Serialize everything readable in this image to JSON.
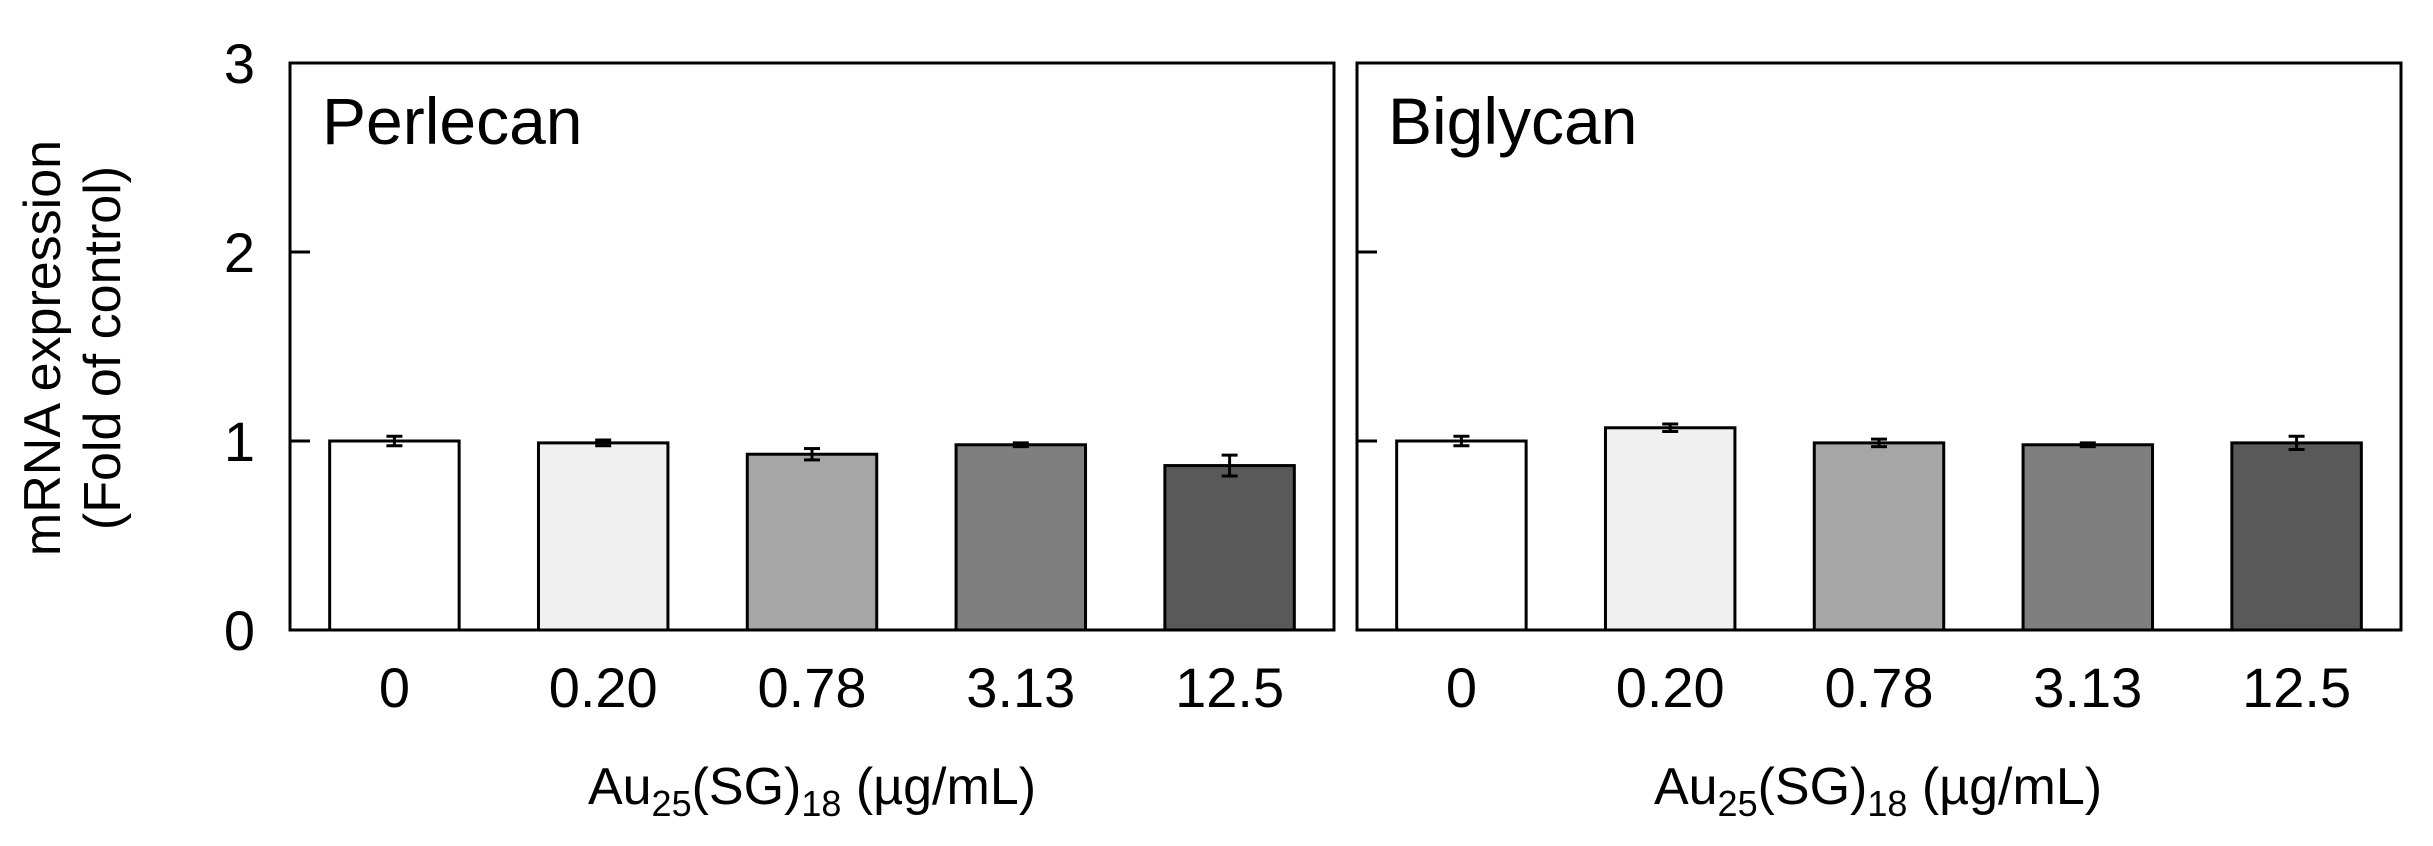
{
  "y_axis": {
    "label_line1": "mRNA expression",
    "label_line2": "(Fold of control)",
    "ticks": [
      "0",
      "1",
      "2",
      "3"
    ]
  },
  "x_axis": {
    "label_main": "Au",
    "label_sub1": "25",
    "label_mid": "(SG)",
    "label_sub2": "18",
    "label_unit": " (µg/mL)"
  },
  "chart_data": [
    {
      "type": "bar",
      "title": "Perlecan",
      "categories": [
        "0",
        "0.20",
        "0.78",
        "3.13",
        "12.5"
      ],
      "values": [
        1.0,
        0.99,
        0.93,
        0.98,
        0.87
      ],
      "errors": [
        0.025,
        0.015,
        0.03,
        0.01,
        0.055
      ],
      "colors": [
        "#ffffff",
        "#f0f0f0",
        "#a6a6a6",
        "#7f7f7f",
        "#595959"
      ],
      "ylim": [
        0,
        3
      ]
    },
    {
      "type": "bar",
      "title": "Biglycan",
      "categories": [
        "0",
        "0.20",
        "0.78",
        "3.13",
        "12.5"
      ],
      "values": [
        1.0,
        1.07,
        0.99,
        0.98,
        0.99
      ],
      "errors": [
        0.025,
        0.02,
        0.02,
        0.01,
        0.035
      ],
      "colors": [
        "#ffffff",
        "#f0f0f0",
        "#a6a6a6",
        "#7f7f7f",
        "#595959"
      ],
      "ylim": [
        0,
        3
      ]
    }
  ]
}
